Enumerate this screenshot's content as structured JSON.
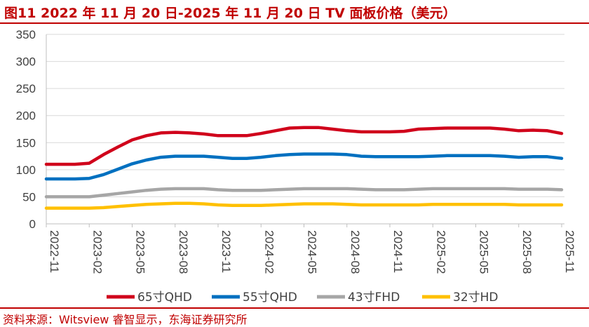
{
  "header": {
    "title": "图11  2022 年 11 月 20 日-2025 年 11 月 20 日 TV 面板价格（美元）"
  },
  "footer": {
    "source": "资料来源：Witsview 睿智显示，东海证券研究所"
  },
  "colors": {
    "accent": "#c00000",
    "axis": "#404040",
    "grid": "#d9d9d9"
  },
  "chart_data": {
    "type": "line",
    "title": "2022 年 11 月 20 日-2025 年 11 月 20 日 TV 面板价格（美元）",
    "xlabel": "",
    "ylabel": "",
    "ylim": [
      0,
      350
    ],
    "yticks": [
      0,
      50,
      100,
      150,
      200,
      250,
      300,
      350
    ],
    "x_tick_labels": [
      "2022-11",
      "2023-02",
      "2023-05",
      "2023-08",
      "2023-11",
      "2024-02",
      "2024-05",
      "2024-08",
      "2024-11",
      "2025-02",
      "2025-05",
      "2025-08",
      "2025-11"
    ],
    "x": [
      "2022-11",
      "2022-12",
      "2023-01",
      "2023-02",
      "2023-03",
      "2023-04",
      "2023-05",
      "2023-06",
      "2023-07",
      "2023-08",
      "2023-09",
      "2023-10",
      "2023-11",
      "2023-12",
      "2024-01",
      "2024-02",
      "2024-03",
      "2024-04",
      "2024-05",
      "2024-06",
      "2024-07",
      "2024-08",
      "2024-09",
      "2024-10",
      "2024-11",
      "2024-12",
      "2025-01",
      "2025-02",
      "2025-03",
      "2025-04",
      "2025-05",
      "2025-06",
      "2025-07",
      "2025-08",
      "2025-09",
      "2025-10",
      "2025-11"
    ],
    "legend_position": "bottom",
    "series": [
      {
        "name": "65寸QHD",
        "color": "#d0021b",
        "values": [
          110,
          110,
          110,
          112,
          128,
          142,
          155,
          163,
          168,
          169,
          168,
          166,
          163,
          163,
          163,
          167,
          172,
          177,
          178,
          178,
          175,
          172,
          170,
          170,
          170,
          171,
          175,
          176,
          177,
          177,
          177,
          177,
          175,
          172,
          173,
          172,
          167
        ]
      },
      {
        "name": "55寸QHD",
        "color": "#0070c0",
        "values": [
          83,
          83,
          83,
          84,
          91,
          101,
          111,
          118,
          123,
          125,
          125,
          125,
          123,
          121,
          121,
          123,
          126,
          128,
          129,
          129,
          129,
          128,
          125,
          124,
          124,
          124,
          124,
          125,
          126,
          126,
          126,
          126,
          125,
          123,
          124,
          124,
          121
        ]
      },
      {
        "name": "43寸FHD",
        "color": "#a6a6a6",
        "values": [
          50,
          50,
          50,
          50,
          53,
          56,
          59,
          62,
          64,
          65,
          65,
          65,
          63,
          62,
          62,
          62,
          63,
          64,
          65,
          65,
          65,
          65,
          64,
          63,
          63,
          63,
          64,
          65,
          65,
          65,
          65,
          65,
          65,
          64,
          64,
          64,
          63
        ]
      },
      {
        "name": "32寸HD",
        "color": "#ffc000",
        "values": [
          29,
          29,
          29,
          29,
          30,
          32,
          34,
          36,
          37,
          38,
          38,
          37,
          35,
          34,
          34,
          34,
          35,
          36,
          37,
          37,
          37,
          36,
          35,
          35,
          35,
          35,
          35,
          36,
          36,
          36,
          36,
          36,
          36,
          35,
          35,
          35,
          35
        ]
      }
    ]
  }
}
